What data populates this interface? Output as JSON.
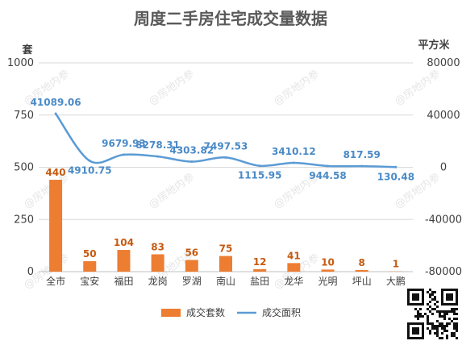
{
  "watermark": "@房地内参",
  "chart_data": {
    "type": "bar+line",
    "title": "周度二手房住宅成交量数据",
    "categories": [
      "全市",
      "宝安",
      "福田",
      "龙岗",
      "罗湖",
      "南山",
      "盐田",
      "龙华",
      "光明",
      "坪山",
      "大鹏"
    ],
    "left_axis": {
      "unit": "套",
      "ylim": [
        0,
        1000
      ],
      "ticks": [
        "0",
        "250",
        "500",
        "750",
        "1000"
      ]
    },
    "right_axis": {
      "unit": "平方米",
      "ylim": [
        -80000,
        80000
      ],
      "ticks": [
        "-80000",
        "-40000",
        "0",
        "40000",
        "80000"
      ]
    },
    "series": [
      {
        "name": "成交套数",
        "type": "bar",
        "axis": "left",
        "color": "#ed7d31",
        "values": [
          440,
          50,
          104,
          83,
          56,
          75,
          12,
          41,
          10,
          8,
          1
        ],
        "labels": [
          "440",
          "50",
          "104",
          "83",
          "56",
          "75",
          "12",
          "41",
          "10",
          "8",
          "1"
        ]
      },
      {
        "name": "成交面积",
        "type": "line",
        "axis": "right",
        "color": "#5b9bd5",
        "smooth": true,
        "values": [
          41089.06,
          4910.75,
          9679.93,
          8278.31,
          4303.82,
          7497.53,
          1115.95,
          3410.12,
          944.58,
          817.59,
          130.48
        ],
        "labels": [
          "41089.06",
          "4910.75",
          "9679.93",
          "8278.31",
          "4303.82",
          "7497.53",
          "1115.95",
          "3410.12",
          "944.58",
          "817.59",
          "130.48"
        ]
      }
    ],
    "grid": true,
    "legend_position": "bottom"
  }
}
